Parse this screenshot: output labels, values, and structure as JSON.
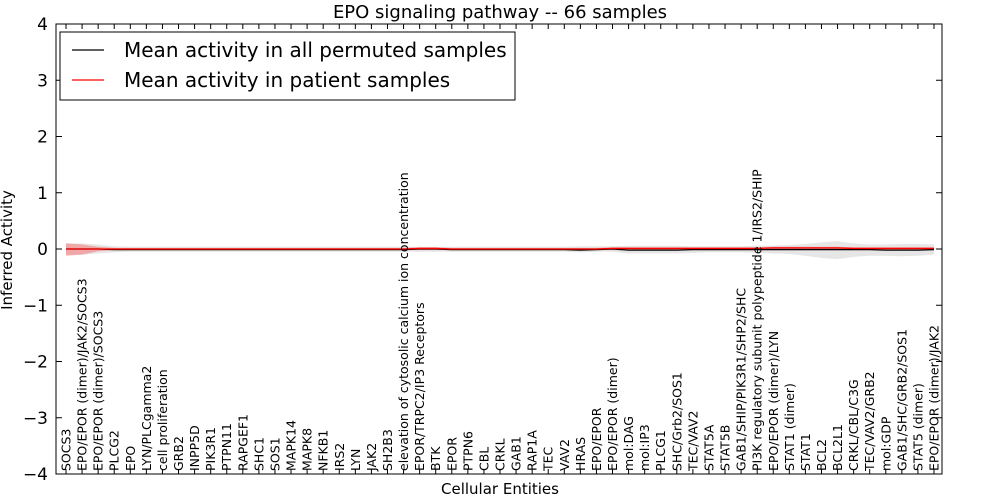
{
  "chart_data": {
    "type": "line",
    "title": "EPO signaling pathway -- 66 samples",
    "xlabel": "Cellular Entities",
    "ylabel": "Inferred Activity",
    "ylim": [
      -4,
      4
    ],
    "yticks": [
      -4,
      -3,
      -2,
      -1,
      0,
      1,
      2,
      3,
      4
    ],
    "ytick_labels": [
      "−4",
      "−3",
      "−2",
      "−1",
      "0",
      "1",
      "2",
      "3",
      "4"
    ],
    "grid": false,
    "legend_position": "top-left",
    "categories": [
      "SOCS3",
      "EPO/EPOR (dimer)/JAK2/SOCS3",
      "EPO/EPOR (dimer)/SOCS3",
      "PLCG2",
      "EPO",
      "LYN/PLCgamma2",
      "cell proliferation",
      "GRB2",
      "INPP5D",
      "PIK3R1",
      "PTPN11",
      "RAPGEF1",
      "SHC1",
      "SOS1",
      "MAPK14",
      "MAPK8",
      "NFKB1",
      "IRS2",
      "LYN",
      "JAK2",
      "SH2B3",
      "elevation of cytosolic calcium ion concentration",
      "EPOR/TRPC2/IP3 Receptors",
      "BTK",
      "EPOR",
      "PTPN6",
      "CBL",
      "CRKL",
      "GAB1",
      "RAP1A",
      "TEC",
      "VAV2",
      "HRAS",
      "EPO/EPOR",
      "EPO/EPOR (dimer)",
      "mol:DAG",
      "mol:IP3",
      "PLCG1",
      "SHC/Grb2/SOS1",
      "TEC/VAV2",
      "STAT5A",
      "STAT5B",
      "GAB1/SHIP/PIK3R1/SHP2/SHC",
      "PI3K regulatory subunit polypeptide 1/IRS2/SHIP",
      "EPO/EPOR (dimer)/LYN",
      "STAT1 (dimer)",
      "STAT1",
      "BCL2",
      "BCL2L1",
      "CRKL/CBL/C3G",
      "TEC/VAV2/GRB2",
      "mol:GDP",
      "GAB1/SHC/GRB2/SOS1",
      "STAT5 (dimer)",
      "EPO/EPOR (dimer)/JAK2"
    ],
    "series": [
      {
        "name": "Mean activity in all permuted samples",
        "color": "#000000",
        "values": [
          0.0,
          0.0,
          0.0,
          -0.01,
          -0.01,
          -0.01,
          -0.01,
          -0.01,
          -0.01,
          -0.01,
          -0.01,
          -0.01,
          -0.01,
          -0.01,
          -0.01,
          -0.01,
          -0.01,
          -0.01,
          -0.01,
          -0.01,
          -0.01,
          -0.01,
          0.0,
          0.0,
          -0.01,
          -0.01,
          -0.01,
          -0.01,
          -0.01,
          -0.01,
          -0.01,
          -0.01,
          -0.02,
          -0.01,
          0.0,
          -0.02,
          -0.02,
          -0.02,
          -0.02,
          -0.01,
          -0.01,
          -0.01,
          -0.01,
          -0.01,
          -0.01,
          -0.01,
          -0.01,
          -0.01,
          -0.01,
          -0.01,
          -0.01,
          -0.02,
          -0.02,
          -0.02,
          -0.01
        ],
        "band_lower": [
          -0.1,
          -0.1,
          -0.08,
          -0.06,
          -0.05,
          -0.05,
          -0.05,
          -0.05,
          -0.05,
          -0.05,
          -0.05,
          -0.05,
          -0.05,
          -0.05,
          -0.05,
          -0.05,
          -0.05,
          -0.05,
          -0.05,
          -0.05,
          -0.05,
          -0.05,
          -0.05,
          -0.05,
          -0.05,
          -0.05,
          -0.05,
          -0.05,
          -0.05,
          -0.05,
          -0.05,
          -0.05,
          -0.06,
          -0.05,
          -0.05,
          -0.08,
          -0.08,
          -0.08,
          -0.08,
          -0.07,
          -0.06,
          -0.06,
          -0.06,
          -0.07,
          -0.08,
          -0.09,
          -0.12,
          -0.16,
          -0.18,
          -0.14,
          -0.12,
          -0.12,
          -0.13,
          -0.12,
          -0.1
        ],
        "band_upper": [
          0.1,
          0.1,
          0.08,
          0.05,
          0.04,
          0.04,
          0.04,
          0.04,
          0.04,
          0.04,
          0.04,
          0.04,
          0.04,
          0.04,
          0.04,
          0.04,
          0.04,
          0.04,
          0.04,
          0.04,
          0.04,
          0.04,
          0.04,
          0.04,
          0.04,
          0.04,
          0.04,
          0.04,
          0.04,
          0.04,
          0.04,
          0.04,
          0.05,
          0.05,
          0.05,
          0.06,
          0.06,
          0.06,
          0.06,
          0.05,
          0.05,
          0.05,
          0.05,
          0.06,
          0.06,
          0.07,
          0.09,
          0.12,
          0.14,
          0.1,
          0.08,
          0.08,
          0.09,
          0.09,
          0.08
        ]
      },
      {
        "name": "Mean activity in patient samples",
        "color": "#ff0000",
        "values": [
          0.0,
          0.0,
          0.0,
          0.0,
          0.0,
          0.0,
          0.0,
          0.0,
          0.0,
          0.0,
          0.0,
          0.0,
          0.0,
          0.0,
          0.0,
          0.0,
          0.0,
          0.0,
          0.0,
          0.0,
          0.0,
          0.0,
          0.01,
          0.01,
          0.0,
          0.0,
          0.0,
          0.0,
          0.0,
          0.0,
          0.0,
          0.0,
          0.0,
          0.0,
          0.01,
          0.01,
          0.01,
          0.01,
          0.01,
          0.01,
          0.01,
          0.01,
          0.01,
          0.01,
          0.02,
          0.02,
          0.02,
          0.02,
          0.02,
          0.01,
          0.01,
          0.01,
          0.01,
          0.01,
          0.01
        ],
        "band_lower": [
          -0.12,
          -0.1,
          -0.04,
          -0.02,
          -0.02,
          -0.02,
          -0.02,
          -0.02,
          -0.02,
          -0.02,
          -0.02,
          -0.02,
          -0.02,
          -0.02,
          -0.02,
          -0.02,
          -0.02,
          -0.02,
          -0.02,
          -0.02,
          -0.02,
          -0.02,
          -0.02,
          -0.02,
          -0.02,
          -0.02,
          -0.02,
          -0.02,
          -0.02,
          -0.02,
          -0.02,
          -0.02,
          -0.02,
          -0.02,
          -0.02,
          -0.02,
          -0.02,
          -0.02,
          -0.02,
          -0.02,
          -0.02,
          -0.02,
          -0.02,
          -0.02,
          -0.02,
          -0.02,
          -0.02,
          -0.02,
          -0.02,
          -0.02,
          -0.02,
          -0.02,
          -0.02,
          -0.02,
          -0.02
        ],
        "band_upper": [
          0.1,
          0.08,
          0.04,
          0.02,
          0.02,
          0.02,
          0.02,
          0.02,
          0.02,
          0.02,
          0.02,
          0.02,
          0.02,
          0.02,
          0.02,
          0.02,
          0.02,
          0.02,
          0.02,
          0.02,
          0.02,
          0.02,
          0.03,
          0.03,
          0.02,
          0.02,
          0.02,
          0.02,
          0.02,
          0.02,
          0.02,
          0.02,
          0.02,
          0.02,
          0.03,
          0.03,
          0.03,
          0.03,
          0.03,
          0.03,
          0.03,
          0.03,
          0.03,
          0.03,
          0.04,
          0.04,
          0.04,
          0.04,
          0.04,
          0.03,
          0.03,
          0.03,
          0.03,
          0.03,
          0.03
        ]
      }
    ]
  }
}
